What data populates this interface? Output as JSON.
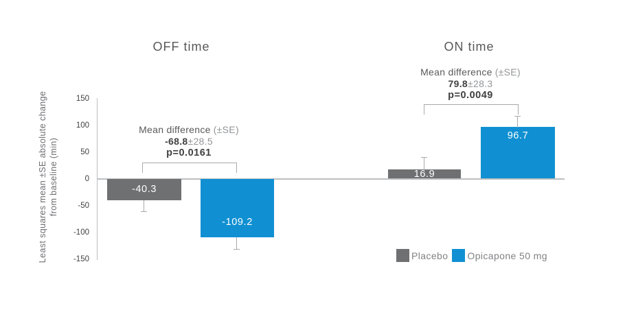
{
  "chart_data": {
    "type": "bar",
    "ylabel_line1": "Least squares mean ±SE absolute change",
    "ylabel_line2": "from baseline (min)",
    "ylim": [
      -150,
      150
    ],
    "yticks": [
      150,
      100,
      50,
      0,
      -50,
      -100,
      -150
    ],
    "grid": false,
    "legend_position": "bottom-right",
    "legend": [
      {
        "label": "Placebo",
        "color": "#6f7071"
      },
      {
        "label": "Opicapone 50 mg",
        "color": "#1090d2"
      }
    ],
    "groups": [
      {
        "title": "OFF time",
        "bars": [
          {
            "series": "Placebo",
            "value": -40.3,
            "label": "-40.3",
            "error_whisker": 20
          },
          {
            "series": "Opicapone 50 mg",
            "value": -109.2,
            "label": "-109.2",
            "error_whisker": 22
          }
        ],
        "annotation": {
          "heading": "Mean difference",
          "se_note": "(±SE)",
          "value": "-68.8",
          "se": "±28.5",
          "p_value": "p=0.0161"
        }
      },
      {
        "title": "ON time",
        "bars": [
          {
            "series": "Placebo",
            "value": 16.9,
            "label": "16.9",
            "error_whisker": 23
          },
          {
            "series": "Opicapone 50 mg",
            "value": 96.7,
            "label": "96.7",
            "error_whisker": 21
          }
        ],
        "annotation": {
          "heading": "Mean difference",
          "se_note": "(±SE)",
          "value": "79.8",
          "se": "±28.3",
          "p_value": "p=0.0049"
        }
      }
    ]
  }
}
